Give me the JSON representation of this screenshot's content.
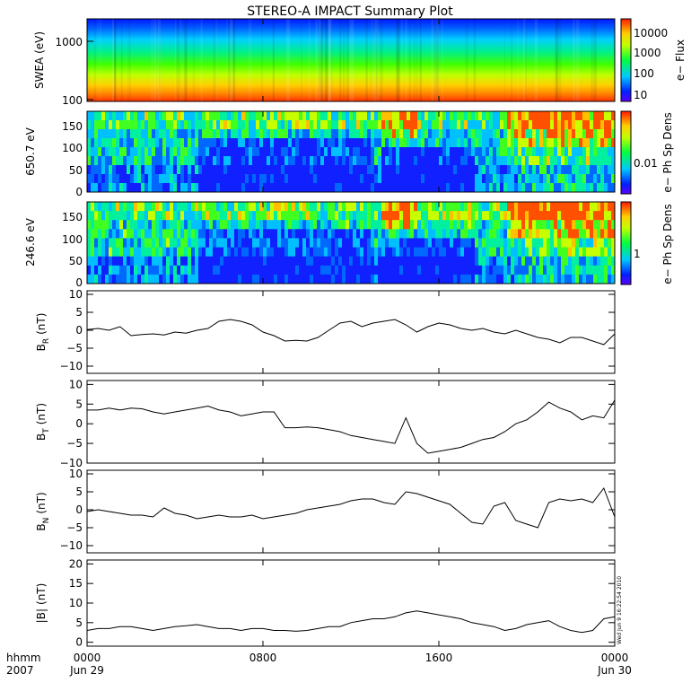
{
  "chart_data": [
    {
      "type": "heatmap",
      "title": "STEREO-A IMPACT Summary Plot",
      "ylabel": "SWEA (eV)",
      "yscale": "log",
      "ylim": [
        95,
        2100
      ],
      "yticks": [
        "1000",
        "100"
      ],
      "colorbar": {
        "label": "e− Flux",
        "scale": "log",
        "ticks": [
          "10000",
          "1000",
          "100",
          "10"
        ]
      }
    },
    {
      "type": "heatmap",
      "ylabel": "650.7 eV",
      "ylim": [
        -5,
        180
      ],
      "yticks": [
        "150",
        "100",
        "50",
        "0"
      ],
      "colorbar": {
        "label": "e− Ph Sp Dens",
        "scale": "log",
        "ticks": [
          "0.01"
        ]
      }
    },
    {
      "type": "heatmap",
      "ylabel": "246.6 eV",
      "ylim": [
        -5,
        180
      ],
      "yticks": [
        "150",
        "100",
        "50",
        "0"
      ],
      "colorbar": {
        "label": "e− Ph Sp Dens",
        "scale": "log",
        "ticks": [
          "1"
        ]
      }
    },
    {
      "type": "line",
      "ylabel": "B_R (nT)",
      "ylabel_main": "B",
      "ylabel_sub": "R",
      "ylabel_unit": "(nT)",
      "ylim": [
        -12,
        11
      ],
      "yticks": [
        "10",
        "5",
        "0",
        "−5",
        "−10"
      ],
      "x_hours": [
        0,
        0.5,
        1,
        1.5,
        2,
        2.5,
        3,
        3.5,
        4,
        4.5,
        5,
        5.5,
        6,
        6.5,
        7,
        7.5,
        8,
        8.5,
        9,
        9.5,
        10,
        10.5,
        11,
        11.5,
        12,
        12.5,
        13,
        13.5,
        14,
        14.5,
        15,
        15.5,
        16,
        16.5,
        17,
        17.5,
        18,
        18.5,
        19,
        19.5,
        20,
        20.5,
        21,
        21.5,
        22,
        22.5,
        23,
        23.5,
        24
      ],
      "values": [
        0.2,
        0.5,
        0,
        1,
        -1.5,
        -1.2,
        -1,
        -1.3,
        -0.5,
        -0.8,
        0,
        0.5,
        2.5,
        3,
        2.5,
        1.5,
        -0.5,
        -1.5,
        -3,
        -2.8,
        -3,
        -2,
        0,
        2,
        2.5,
        1,
        2,
        2.5,
        3,
        1.5,
        -0.5,
        1,
        2,
        1.5,
        0.5,
        0,
        0.5,
        -0.5,
        -1,
        0,
        -1,
        -2,
        -2.5,
        -3.5,
        -2,
        -2,
        -3,
        -4,
        -1
      ]
    },
    {
      "type": "line",
      "ylabel": "B_T (nT)",
      "ylabel_main": "B",
      "ylabel_sub": "T",
      "ylabel_unit": "(nT)",
      "ylim": [
        -10,
        11
      ],
      "yticks": [
        "10",
        "5",
        "0",
        "−5",
        "−10"
      ],
      "x_hours": [
        0,
        0.5,
        1,
        1.5,
        2,
        2.5,
        3,
        3.5,
        4,
        4.5,
        5,
        5.5,
        6,
        6.5,
        7,
        7.5,
        8,
        8.5,
        9,
        9.5,
        10,
        10.5,
        11,
        11.5,
        12,
        12.5,
        13,
        13.5,
        14,
        14.5,
        15,
        15.5,
        16,
        16.5,
        17,
        17.5,
        18,
        18.5,
        19,
        19.5,
        20,
        20.5,
        21,
        21.5,
        22,
        22.5,
        23,
        23.5,
        24
      ],
      "values": [
        3.5,
        3.5,
        4,
        3.5,
        4,
        3.8,
        3,
        2.5,
        3,
        3.5,
        4,
        4.5,
        3.5,
        3,
        2,
        2.5,
        3,
        3,
        -1,
        -1,
        -0.8,
        -1,
        -1.5,
        -2,
        -3,
        -3.5,
        -4,
        -4.5,
        -5,
        1.5,
        -5,
        -7.5,
        -7,
        -6.5,
        -6,
        -5,
        -4,
        -3.5,
        -2,
        0,
        1,
        3,
        5.5,
        4,
        3,
        1,
        2,
        1.5,
        6
      ]
    },
    {
      "type": "line",
      "ylabel": "B_N (nT)",
      "ylabel_main": "B",
      "ylabel_sub": "N",
      "ylabel_unit": "(nT)",
      "ylim": [
        -12,
        11
      ],
      "yticks": [
        "10",
        "5",
        "0",
        "−5",
        "−10"
      ],
      "x_hours": [
        0,
        0.5,
        1,
        1.5,
        2,
        2.5,
        3,
        3.5,
        4,
        4.5,
        5,
        5.5,
        6,
        6.5,
        7,
        7.5,
        8,
        8.5,
        9,
        9.5,
        10,
        10.5,
        11,
        11.5,
        12,
        12.5,
        13,
        13.5,
        14,
        14.5,
        15,
        15.5,
        16,
        16.5,
        17,
        17.5,
        18,
        18.5,
        19,
        19.5,
        20,
        20.5,
        21,
        21.5,
        22,
        22.5,
        23,
        23.5,
        24
      ],
      "values": [
        -0.5,
        0,
        -0.5,
        -1,
        -1.5,
        -1.5,
        -2,
        0.5,
        -1,
        -1.5,
        -2.5,
        -2,
        -1.5,
        -2,
        -2,
        -1.5,
        -2.5,
        -2,
        -1.5,
        -1,
        0,
        0.5,
        1,
        1.5,
        2.5,
        3,
        3,
        2,
        1.5,
        5,
        4.5,
        3.5,
        2.5,
        1.5,
        -1,
        -3.5,
        -4,
        1,
        2,
        -3,
        -4,
        -5,
        2,
        3,
        2.5,
        3,
        2,
        6,
        -2
      ]
    },
    {
      "type": "line",
      "ylabel": "|B| (nT)",
      "ylabel_main": "|B|",
      "ylabel_unit": "(nT)",
      "ylim": [
        -1,
        21
      ],
      "yticks": [
        "20",
        "15",
        "10",
        "5",
        "0"
      ],
      "x_hours": [
        0,
        0.5,
        1,
        1.5,
        2,
        2.5,
        3,
        3.5,
        4,
        4.5,
        5,
        5.5,
        6,
        6.5,
        7,
        7.5,
        8,
        8.5,
        9,
        9.5,
        10,
        10.5,
        11,
        11.5,
        12,
        12.5,
        13,
        13.5,
        14,
        14.5,
        15,
        15.5,
        16,
        16.5,
        17,
        17.5,
        18,
        18.5,
        19,
        19.5,
        20,
        20.5,
        21,
        21.5,
        22,
        22.5,
        23,
        23.5,
        24
      ],
      "values": [
        3,
        3.5,
        3.5,
        4,
        4,
        3.5,
        3,
        3.5,
        4,
        4.2,
        4.5,
        4,
        3.5,
        3.5,
        3,
        3.5,
        3.5,
        3,
        3,
        2.8,
        3,
        3.5,
        4,
        4,
        5,
        5.5,
        6,
        6,
        6.5,
        7.5,
        8,
        7.5,
        7,
        6.5,
        6,
        5,
        4.5,
        4,
        3,
        3.5,
        4.5,
        5,
        5.5,
        4,
        3,
        2.5,
        3,
        6,
        6.5
      ]
    }
  ],
  "x_axis": {
    "tick_labels": [
      "0000",
      "0800",
      "1600",
      "0000"
    ],
    "tick_hours": [
      0,
      8,
      16,
      24
    ],
    "row1_left": "hhmm",
    "row2_left": "2007",
    "date_start": "Jun 29",
    "date_end": "Jun 30"
  },
  "timestamp_text": "Wed Jun  9 16:22:54 2010",
  "colors": {
    "line": "#000000",
    "frame": "#000000",
    "background": "#ffffff"
  }
}
